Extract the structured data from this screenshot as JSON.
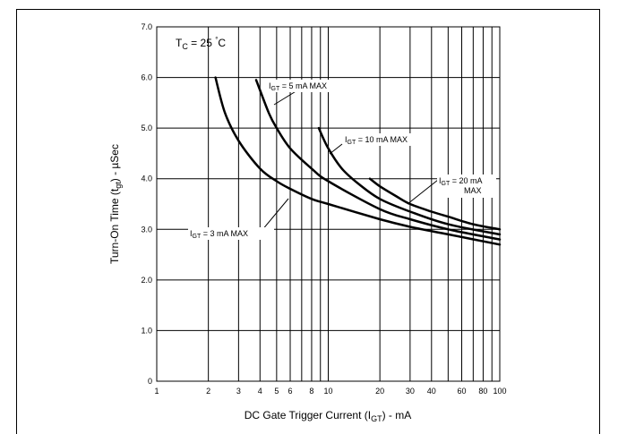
{
  "chart_data": {
    "type": "line",
    "xscale": "log",
    "xlim": [
      1,
      100
    ],
    "ylim": [
      0,
      7.0
    ],
    "x_ticks": [
      "1",
      "2",
      "3",
      "4",
      "5",
      "6",
      "8",
      "10",
      "20",
      "30",
      "40",
      "60",
      "80",
      "100"
    ],
    "y_ticks": [
      "0",
      "1.0",
      "2.0",
      "3.0",
      "4.0",
      "5.0",
      "6.0",
      "7.0"
    ],
    "grid": true,
    "xlabel": "DC Gate Trigger Current (I_GT) - mA",
    "ylabel": "Turn-On Time (t_gt) - µSec",
    "condition": "T_C = 25 °C",
    "series": [
      {
        "name": "I_GT = 3 mA MAX",
        "x": [
          2.2,
          2.5,
          3,
          4,
          5,
          6,
          8,
          10,
          20,
          30,
          50,
          100
        ],
        "y": [
          6.0,
          5.3,
          4.75,
          4.2,
          3.95,
          3.8,
          3.6,
          3.5,
          3.2,
          3.05,
          2.9,
          2.7
        ]
      },
      {
        "name": "I_GT = 5 mA MAX",
        "x": [
          3.8,
          4.5,
          5,
          6,
          8,
          10,
          20,
          30,
          50,
          100
        ],
        "y": [
          5.95,
          5.3,
          5.0,
          4.6,
          4.2,
          3.95,
          3.4,
          3.2,
          3.0,
          2.8
        ]
      },
      {
        "name": "I_GT = 10 mA MAX",
        "x": [
          8.8,
          10,
          12,
          15,
          20,
          30,
          50,
          100
        ],
        "y": [
          5.0,
          4.6,
          4.2,
          3.9,
          3.6,
          3.35,
          3.1,
          2.9
        ]
      },
      {
        "name": "I_GT = 20 mA MAX",
        "x": [
          17.5,
          20,
          25,
          30,
          40,
          50,
          70,
          100
        ],
        "y": [
          4.0,
          3.85,
          3.65,
          3.5,
          3.35,
          3.25,
          3.1,
          3.0
        ]
      }
    ]
  }
}
